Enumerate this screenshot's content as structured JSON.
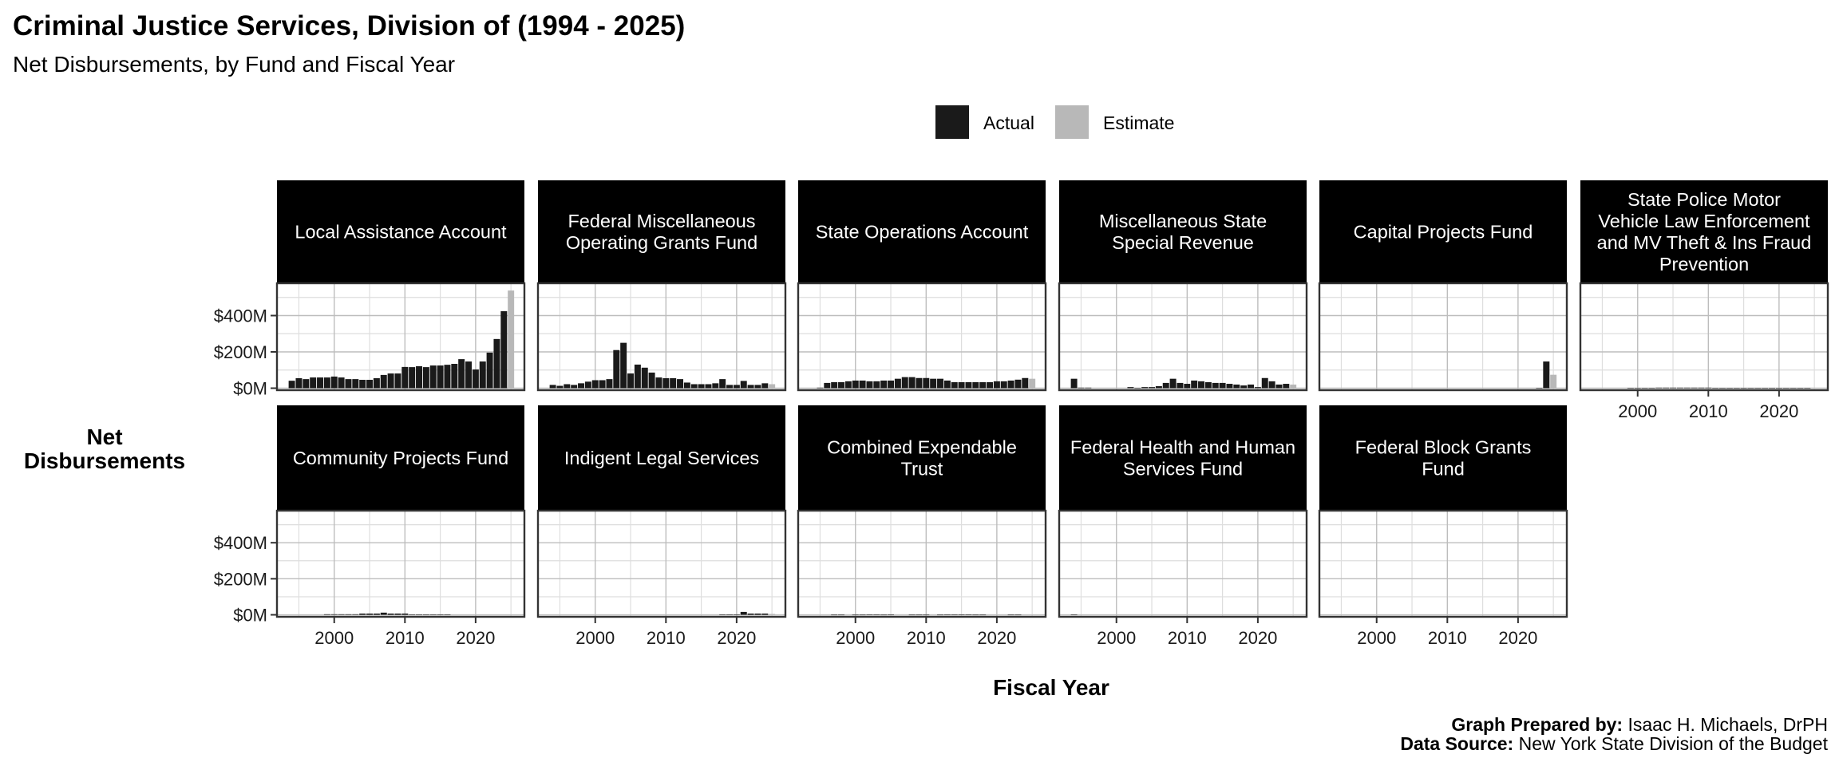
{
  "chart_data": {
    "type": "bar",
    "title": "Criminal Justice Services, Division of (1994 - 2025)",
    "subtitle": "Net Disbursements, by Fund and Fiscal Year",
    "xlabel": "Fiscal Year",
    "ylabel": "Net Disbursements",
    "ylim": [
      -11,
      578
    ],
    "xlim": [
      1991.9,
      2026.9
    ],
    "y_ticks": [
      {
        "value": 0,
        "label": "$0M"
      },
      {
        "value": 200,
        "label": "$200M"
      },
      {
        "value": 400,
        "label": "$400M"
      }
    ],
    "x_ticks": [
      {
        "value": 2000,
        "label": "2000"
      },
      {
        "value": 2010,
        "label": "2010"
      },
      {
        "value": 2020,
        "label": "2020"
      }
    ],
    "units": "millions USD",
    "grid": true,
    "legend": {
      "placement": "top-center",
      "entries": [
        {
          "name": "Actual",
          "color": "#1a1a1a"
        },
        {
          "name": "Estimate",
          "color": "#b8b8b8"
        }
      ]
    },
    "panels": [
      {
        "fund": "Local Assistance Account",
        "years": [
          1994,
          1995,
          1996,
          1997,
          1998,
          1999,
          2000,
          2001,
          2002,
          2003,
          2004,
          2005,
          2006,
          2007,
          2008,
          2009,
          2010,
          2011,
          2012,
          2013,
          2014,
          2015,
          2016,
          2017,
          2018,
          2019,
          2020,
          2021,
          2022,
          2023,
          2024,
          2025
        ],
        "values": [
          41,
          55,
          50,
          59,
          59,
          59,
          64,
          59,
          50,
          50,
          46,
          46,
          55,
          73,
          81,
          81,
          117,
          116,
          121,
          116,
          125,
          125,
          129,
          134,
          160,
          147,
          103,
          147,
          196,
          271,
          424,
          538
        ],
        "status": [
          "Actual",
          "Actual",
          "Actual",
          "Actual",
          "Actual",
          "Actual",
          "Actual",
          "Actual",
          "Actual",
          "Actual",
          "Actual",
          "Actual",
          "Actual",
          "Actual",
          "Actual",
          "Actual",
          "Actual",
          "Actual",
          "Actual",
          "Actual",
          "Actual",
          "Actual",
          "Actual",
          "Actual",
          "Actual",
          "Actual",
          "Actual",
          "Actual",
          "Actual",
          "Actual",
          "Actual",
          "Estimate"
        ]
      },
      {
        "fund": "Federal Miscellaneous Operating Grants Fund",
        "years": [
          1994,
          1995,
          1996,
          1997,
          1998,
          1999,
          2000,
          2001,
          2002,
          2003,
          2004,
          2005,
          2006,
          2007,
          2008,
          2009,
          2010,
          2011,
          2012,
          2013,
          2014,
          2015,
          2016,
          2017,
          2018,
          2019,
          2020,
          2021,
          2022,
          2023,
          2024,
          2025
        ],
        "values": [
          18,
          13,
          22,
          18,
          27,
          36,
          44,
          44,
          50,
          210,
          250,
          81,
          130,
          113,
          86,
          59,
          55,
          55,
          50,
          31,
          22,
          22,
          22,
          27,
          50,
          18,
          18,
          40,
          18,
          18,
          27,
          22
        ],
        "status": [
          "Actual",
          "Actual",
          "Actual",
          "Actual",
          "Actual",
          "Actual",
          "Actual",
          "Actual",
          "Actual",
          "Actual",
          "Actual",
          "Actual",
          "Actual",
          "Actual",
          "Actual",
          "Actual",
          "Actual",
          "Actual",
          "Actual",
          "Actual",
          "Actual",
          "Actual",
          "Actual",
          "Actual",
          "Actual",
          "Actual",
          "Actual",
          "Actual",
          "Actual",
          "Actual",
          "Actual",
          "Estimate"
        ]
      },
      {
        "fund": "State Operations Account",
        "years": [
          1995,
          1996,
          1997,
          1998,
          1999,
          2000,
          2001,
          2002,
          2003,
          2004,
          2005,
          2006,
          2007,
          2008,
          2009,
          2010,
          2011,
          2012,
          2013,
          2014,
          2015,
          2016,
          2017,
          2018,
          2019,
          2020,
          2021,
          2022,
          2023,
          2024,
          2025
        ],
        "values": [
          3,
          29,
          33,
          33,
          38,
          42,
          42,
          38,
          38,
          42,
          42,
          52,
          61,
          61,
          56,
          56,
          52,
          52,
          42,
          33,
          33,
          33,
          33,
          33,
          33,
          38,
          38,
          42,
          47,
          56,
          52
        ],
        "status": [
          "Actual",
          "Actual",
          "Actual",
          "Actual",
          "Actual",
          "Actual",
          "Actual",
          "Actual",
          "Actual",
          "Actual",
          "Actual",
          "Actual",
          "Actual",
          "Actual",
          "Actual",
          "Actual",
          "Actual",
          "Actual",
          "Actual",
          "Actual",
          "Actual",
          "Actual",
          "Actual",
          "Actual",
          "Actual",
          "Actual",
          "Actual",
          "Actual",
          "Actual",
          "Actual",
          "Estimate"
        ]
      },
      {
        "fund": "Miscellaneous State Special Revenue",
        "years": [
          1994,
          1995,
          1996,
          2002,
          2003,
          2004,
          2005,
          2006,
          2007,
          2008,
          2009,
          2010,
          2011,
          2012,
          2013,
          2014,
          2015,
          2016,
          2017,
          2018,
          2019,
          2020,
          2021,
          2022,
          2023,
          2024,
          2025
        ],
        "values": [
          52,
          3,
          3,
          6,
          2,
          6,
          6,
          11,
          29,
          52,
          29,
          24,
          42,
          38,
          33,
          29,
          29,
          24,
          20,
          15,
          20,
          6,
          56,
          38,
          20,
          24,
          20
        ],
        "status": [
          "Actual",
          "Actual",
          "Actual",
          "Actual",
          "Actual",
          "Actual",
          "Actual",
          "Actual",
          "Actual",
          "Actual",
          "Actual",
          "Actual",
          "Actual",
          "Actual",
          "Actual",
          "Actual",
          "Actual",
          "Actual",
          "Actual",
          "Actual",
          "Actual",
          "Actual",
          "Actual",
          "Actual",
          "Actual",
          "Actual",
          "Estimate"
        ]
      },
      {
        "fund": "Capital Projects Fund",
        "years": [
          2023,
          2024,
          2025
        ],
        "values": [
          1,
          147,
          74
        ],
        "status": [
          "Actual",
          "Actual",
          "Estimate"
        ]
      },
      {
        "fund": "State Police Motor Vehicle Law Enforcement and MV Theft & Ins Fraud Prevention",
        "years": [
          1999,
          2000,
          2001,
          2002,
          2003,
          2004,
          2005,
          2006,
          2007,
          2008,
          2009,
          2010,
          2011,
          2012,
          2013,
          2014,
          2015,
          2016,
          2017,
          2018,
          2019,
          2020,
          2021,
          2022,
          2023,
          2024
        ],
        "values": [
          1,
          1,
          1,
          1,
          3,
          3,
          3,
          3,
          3,
          3,
          3,
          3,
          1,
          1,
          1,
          1,
          1,
          1,
          1,
          1,
          1,
          1,
          1,
          1,
          1,
          1
        ],
        "status": [
          "Actual",
          "Actual",
          "Actual",
          "Actual",
          "Actual",
          "Actual",
          "Actual",
          "Actual",
          "Actual",
          "Actual",
          "Actual",
          "Actual",
          "Actual",
          "Actual",
          "Actual",
          "Actual",
          "Actual",
          "Actual",
          "Actual",
          "Actual",
          "Actual",
          "Actual",
          "Actual",
          "Actual",
          "Actual",
          "Actual"
        ]
      },
      {
        "fund": "Community Projects Fund",
        "years": [
          1999,
          2000,
          2001,
          2002,
          2003,
          2004,
          2005,
          2006,
          2007,
          2008,
          2009,
          2010,
          2011,
          2012,
          2013,
          2014,
          2015,
          2016
        ],
        "values": [
          3,
          3,
          3,
          3,
          3,
          7,
          7,
          7,
          12,
          7,
          7,
          7,
          2,
          0.5,
          0.5,
          0.5,
          0.5,
          0.5
        ],
        "status": [
          "Actual",
          "Actual",
          "Actual",
          "Actual",
          "Actual",
          "Actual",
          "Actual",
          "Actual",
          "Actual",
          "Actual",
          "Actual",
          "Actual",
          "Actual",
          "Actual",
          "Actual",
          "Actual",
          "Actual",
          "Actual"
        ]
      },
      {
        "fund": "Indigent Legal Services",
        "years": [
          2018,
          2019,
          2020,
          2021,
          2022,
          2023,
          2024,
          2025
        ],
        "values": [
          1,
          1,
          1,
          16,
          7,
          7,
          7,
          5
        ],
        "status": [
          "Actual",
          "Actual",
          "Actual",
          "Actual",
          "Actual",
          "Actual",
          "Actual",
          "Estimate"
        ]
      },
      {
        "fund": "Combined Expendable Trust",
        "years": [
          1997,
          1998,
          2000,
          2001,
          2002,
          2003,
          2004,
          2005,
          2008,
          2009,
          2010,
          2012,
          2013,
          2014,
          2015,
          2016,
          2017,
          2018,
          2022,
          2023
        ],
        "values": [
          0.3,
          0.3,
          0.3,
          0.3,
          0.5,
          0.5,
          0.3,
          0.5,
          0.3,
          0.3,
          0.3,
          0.3,
          0.5,
          0.5,
          0.5,
          0.5,
          0.3,
          0.3,
          0.3,
          0.3
        ],
        "status": [
          "Actual",
          "Actual",
          "Actual",
          "Actual",
          "Actual",
          "Actual",
          "Actual",
          "Actual",
          "Actual",
          "Actual",
          "Actual",
          "Actual",
          "Actual",
          "Actual",
          "Actual",
          "Actual",
          "Actual",
          "Actual",
          "Actual",
          "Actual"
        ]
      },
      {
        "fund": "Federal Health and Human Services Fund",
        "years": [
          1994
        ],
        "values": [
          0.5
        ],
        "status": [
          "Actual"
        ]
      },
      {
        "fund": "Federal Block Grants Fund",
        "years": [],
        "values": [],
        "status": []
      }
    ]
  },
  "strip_lines": [
    [
      "Local Assistance Account"
    ],
    [
      "Federal Miscellaneous",
      "Operating Grants Fund"
    ],
    [
      "State Operations Account"
    ],
    [
      "Miscellaneous State",
      "Special Revenue"
    ],
    [
      "Capital Projects Fund"
    ],
    [
      "State Police Motor",
      "Vehicle Law Enforcement",
      "and MV Theft & Ins Fraud",
      "Prevention"
    ],
    [
      "Community Projects Fund"
    ],
    [
      "Indigent Legal Services"
    ],
    [
      "Combined Expendable",
      "Trust"
    ],
    [
      "Federal Health and Human",
      "Services Fund"
    ],
    [
      "Federal Block Grants",
      "Fund"
    ]
  ],
  "ylabel_lines": [
    "Net",
    "Disbursements"
  ],
  "caption": {
    "prepared_label": "Graph Prepared by:",
    "prepared_value": " Isaac H. Michaels, DrPH",
    "source_label": "Data Source:",
    "source_value": " New York State Division of the Budget"
  }
}
